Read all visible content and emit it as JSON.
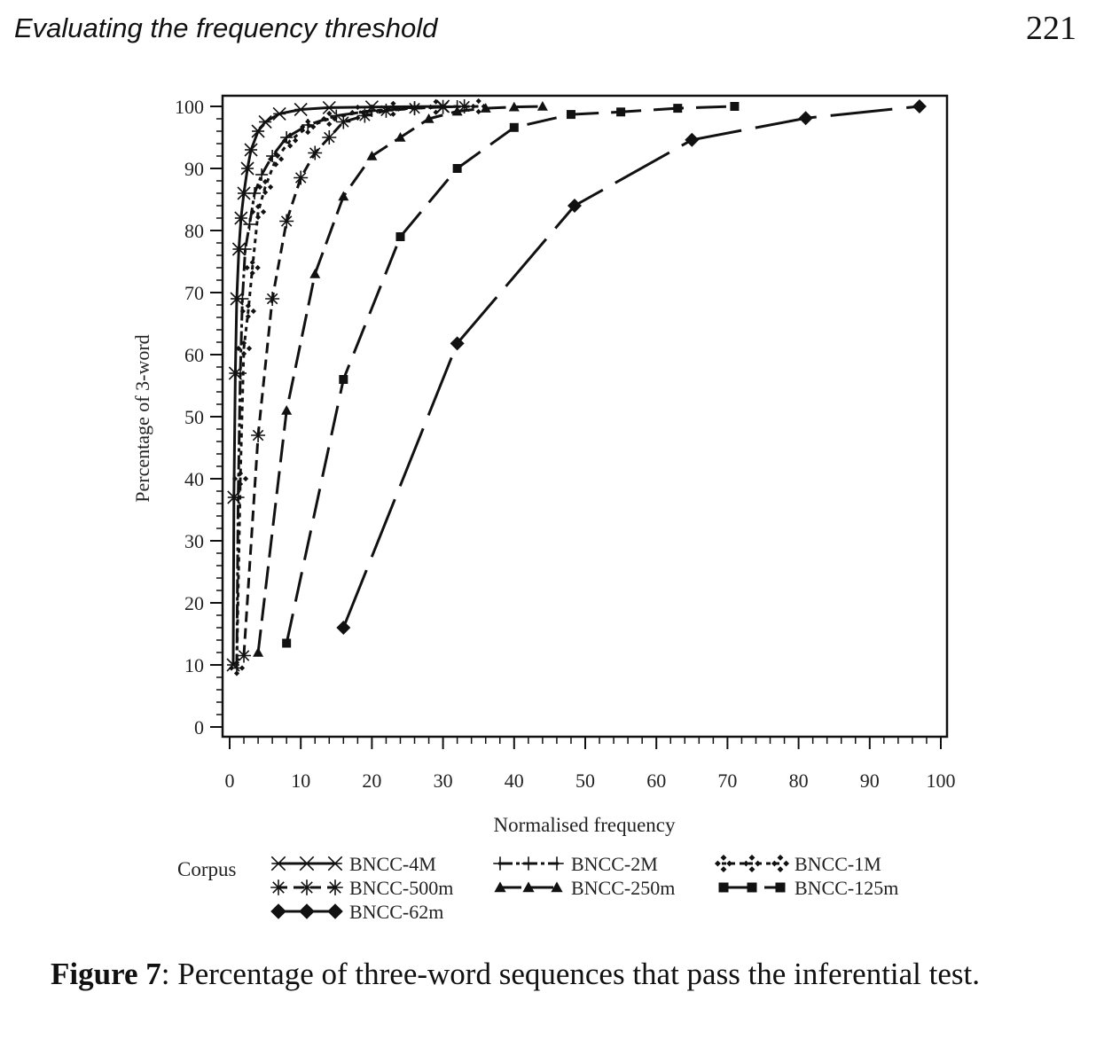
{
  "header": {
    "running_title": "Evaluating the frequency threshold",
    "page_number": "221"
  },
  "figure": {
    "label": "Figure 7",
    "caption": ": Percentage of three-word sequences that pass the inferential test."
  },
  "chart_data": {
    "type": "line",
    "xlabel": "Normalised frequency",
    "ylabel": "Percentage of 3-word",
    "xlim": [
      0,
      100
    ],
    "ylim": [
      0,
      100
    ],
    "x_ticks": [
      0,
      10,
      20,
      30,
      40,
      50,
      60,
      70,
      80,
      90,
      100
    ],
    "y_ticks": [
      0,
      10,
      20,
      30,
      40,
      50,
      60,
      70,
      80,
      90,
      100
    ],
    "grid": false,
    "legend_title": "Corpus",
    "legend_position": "bottom",
    "series": [
      {
        "name": "BNCC-4M",
        "marker": "x-star",
        "dash": "solid",
        "x": [
          0.5,
          0.6,
          0.8,
          1.0,
          1.3,
          1.6,
          2.0,
          2.5,
          3.0,
          4.0,
          5.0,
          7.0,
          10.0,
          14.0,
          20.0,
          30.0
        ],
        "y": [
          10,
          37,
          57,
          69,
          77,
          82,
          86,
          90,
          93,
          96,
          97.5,
          98.8,
          99.5,
          99.8,
          99.9,
          100
        ]
      },
      {
        "name": "BNCC-2M",
        "marker": "plus",
        "dash": "long-short",
        "x": [
          1.0,
          1.2,
          1.5,
          1.8,
          2.2,
          2.8,
          3.5,
          4.5,
          6.0,
          8.0,
          11.0,
          15.0,
          20.0,
          26.0,
          32.0
        ],
        "y": [
          9.5,
          37,
          57,
          69,
          77,
          81,
          86,
          89,
          92,
          95,
          97,
          98.5,
          99.3,
          99.7,
          100
        ]
      },
      {
        "name": "BNCC-1M",
        "marker": "cross-diamond",
        "dash": "dotted",
        "x": [
          1.0,
          1.5,
          2.0,
          2.6,
          3.2,
          4.0,
          5.0,
          6.5,
          8.5,
          11.0,
          14.0,
          18.0,
          23.0,
          29.0,
          35.0
        ],
        "y": [
          9.5,
          40,
          61,
          67,
          74,
          83,
          87,
          91.5,
          94.5,
          96.7,
          98,
          99,
          99.6,
          99.9,
          100
        ]
      },
      {
        "name": "BNCC-500m",
        "marker": "asterisk",
        "dash": "dashed",
        "x": [
          2.0,
          4.0,
          6.0,
          8.0,
          10.0,
          12.0,
          14.0,
          16.0,
          19.0,
          22.0,
          26.0,
          30.0,
          33.0
        ],
        "y": [
          11.5,
          47,
          69,
          81.5,
          88.5,
          92.5,
          95,
          97.5,
          98.5,
          99.3,
          99.7,
          99.9,
          100
        ]
      },
      {
        "name": "BNCC-250m",
        "marker": "triangle",
        "dash": "long-dash",
        "x": [
          4.0,
          8.0,
          12.0,
          16.0,
          20.0,
          24.0,
          28.0,
          32.0,
          36.0,
          40.0,
          44.0
        ],
        "y": [
          12,
          51,
          73,
          85.5,
          92,
          95,
          98,
          99.2,
          99.7,
          99.9,
          100
        ]
      },
      {
        "name": "BNCC-125m",
        "marker": "square",
        "dash": "long-dash-2",
        "x": [
          8.0,
          16.0,
          24.0,
          32.0,
          40.0,
          48.0,
          55.0,
          63.0,
          71.0
        ],
        "y": [
          13.5,
          56,
          79,
          90,
          96.6,
          98.7,
          99.1,
          99.7,
          100
        ]
      },
      {
        "name": "BNCC-62m",
        "marker": "diamond",
        "dash": "long-gap",
        "x": [
          16.0,
          32.0,
          48.5,
          65.0,
          81.0,
          97.0
        ],
        "y": [
          16,
          61.8,
          84,
          94.6,
          98.1,
          100
        ]
      }
    ]
  }
}
